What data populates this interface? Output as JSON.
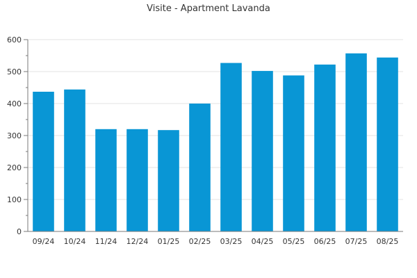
{
  "chart_data": {
    "type": "bar",
    "title": "Visite - Apartment Lavanda",
    "xlabel": "",
    "ylabel": "",
    "categories": [
      "09/24",
      "10/24",
      "11/24",
      "12/24",
      "01/25",
      "02/25",
      "03/25",
      "04/25",
      "05/25",
      "06/25",
      "07/25",
      "08/25"
    ],
    "values": [
      437,
      444,
      320,
      320,
      317,
      400,
      527,
      502,
      488,
      522,
      557,
      544
    ],
    "ylim": [
      0,
      600
    ],
    "yticks": [
      0,
      100,
      200,
      300,
      400,
      500,
      600
    ],
    "grid": true,
    "legend": "none",
    "colors": {
      "bar": "#0996d5",
      "grid": "#e3e3e3",
      "axis": "#7a7a7a"
    }
  }
}
